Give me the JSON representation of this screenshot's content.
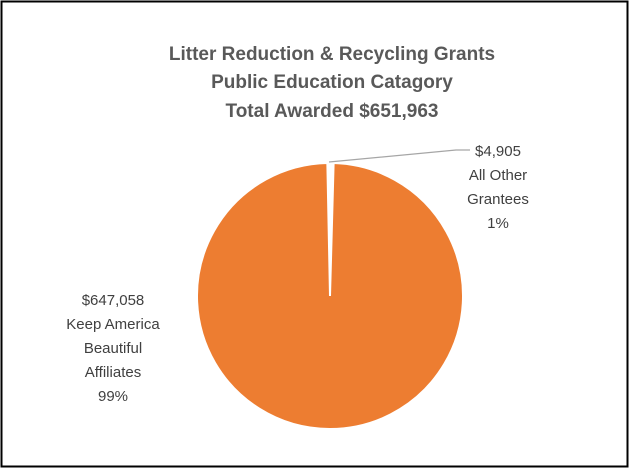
{
  "chart_data": {
    "type": "pie",
    "title_lines": [
      "Litter Reduction & Recycling Grants",
      "Public Education Catagory",
      "Total Awarded $651,963"
    ],
    "slices": [
      {
        "name": "All Other Grantees",
        "value": 4905,
        "percent": 1,
        "color": "#FFFFFF",
        "label_lines": [
          "$4,905",
          "All Other",
          "Grantees",
          "1%"
        ]
      },
      {
        "name": "Keep America Beautiful Affiliates",
        "value": 647058,
        "percent": 99,
        "color": "#ED7D31",
        "label_lines": [
          "$647,058",
          "Keep America",
          "Beautiful",
          "Affiliates",
          "99%"
        ]
      }
    ],
    "legend": "none"
  }
}
